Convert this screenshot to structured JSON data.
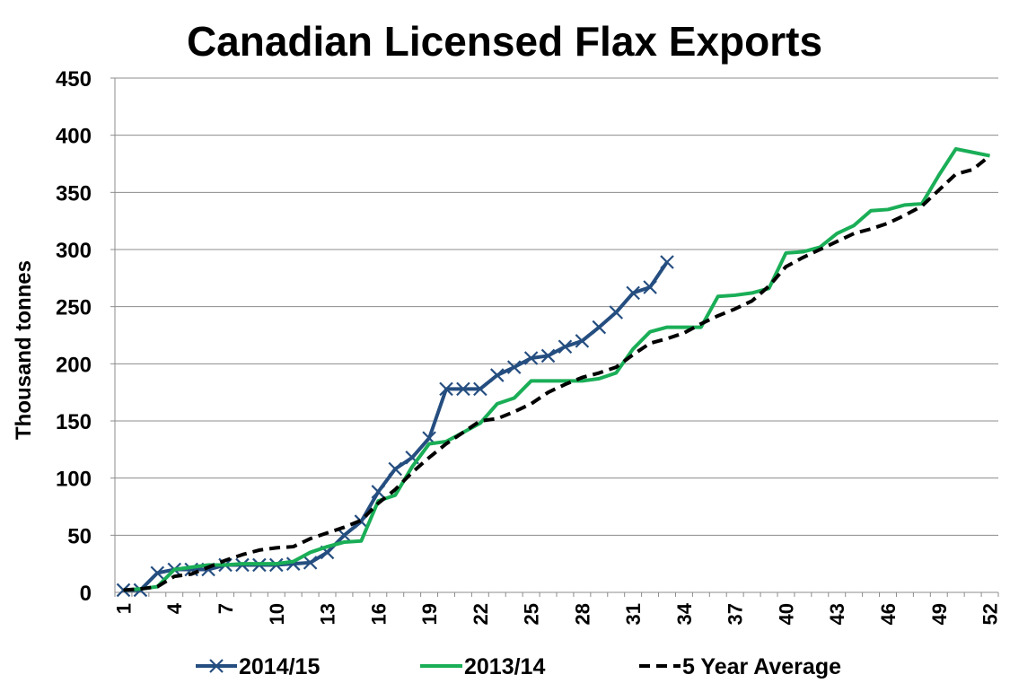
{
  "chart_data": {
    "type": "line",
    "title": "Canadian Licensed Flax Exports",
    "xlabel": "",
    "ylabel": "Thousand tonnes",
    "xlim": [
      1,
      52
    ],
    "ylim": [
      0,
      450
    ],
    "y_ticks": [
      "0",
      "50",
      "100",
      "150",
      "200",
      "250",
      "300",
      "350",
      "400",
      "450"
    ],
    "x_ticks": [
      "1",
      "4",
      "7",
      "10",
      "13",
      "16",
      "19",
      "22",
      "25",
      "28",
      "31",
      "34",
      "37",
      "40",
      "43",
      "46",
      "49",
      "52"
    ],
    "grid": "horizontal",
    "legend_position": "bottom",
    "series": [
      {
        "name": "2014/15",
        "color": "#254E80",
        "style": "solid-x-markers",
        "x": [
          1,
          2,
          3,
          4,
          5,
          6,
          7,
          8,
          9,
          10,
          11,
          12,
          13,
          14,
          15,
          16,
          17,
          18,
          19,
          20,
          21,
          22,
          23,
          24,
          25,
          26,
          27,
          28,
          29,
          30,
          31,
          32,
          33
        ],
        "values": [
          2,
          2,
          17,
          20,
          20,
          20,
          24,
          24,
          24,
          24,
          25,
          26,
          35,
          50,
          62,
          88,
          108,
          118,
          135,
          178,
          178,
          178,
          190,
          197,
          205,
          207,
          215,
          220,
          232,
          245,
          262,
          267,
          289
        ]
      },
      {
        "name": "2013/14",
        "color": "#1AAE57",
        "style": "solid",
        "x": [
          1,
          2,
          3,
          4,
          5,
          6,
          7,
          8,
          9,
          10,
          11,
          12,
          13,
          14,
          15,
          16,
          17,
          18,
          19,
          20,
          21,
          22,
          23,
          24,
          25,
          26,
          27,
          28,
          29,
          30,
          31,
          32,
          33,
          34,
          35,
          36,
          37,
          38,
          39,
          40,
          41,
          42,
          43,
          44,
          45,
          46,
          47,
          48,
          49,
          50,
          51,
          52
        ],
        "values": [
          2,
          3,
          5,
          20,
          22,
          24,
          24,
          25,
          25,
          25,
          27,
          35,
          40,
          44,
          45,
          80,
          85,
          110,
          130,
          132,
          140,
          148,
          165,
          170,
          185,
          185,
          185,
          185,
          187,
          192,
          213,
          228,
          232,
          232,
          232,
          259,
          260,
          262,
          266,
          297,
          298,
          302,
          314,
          321,
          334,
          335,
          339,
          340,
          365,
          388,
          385,
          382
        ]
      },
      {
        "name": "5 Year Average",
        "color": "#000000",
        "style": "dashed",
        "x": [
          1,
          2,
          3,
          4,
          5,
          6,
          7,
          8,
          9,
          10,
          11,
          12,
          13,
          14,
          15,
          16,
          17,
          18,
          19,
          20,
          21,
          22,
          23,
          24,
          25,
          26,
          27,
          28,
          29,
          30,
          31,
          32,
          33,
          34,
          35,
          36,
          37,
          38,
          39,
          40,
          41,
          42,
          43,
          44,
          45,
          46,
          47,
          48,
          49,
          50,
          51,
          52
        ],
        "values": [
          2,
          3,
          5,
          14,
          16,
          22,
          28,
          33,
          37,
          39,
          40,
          47,
          52,
          57,
          63,
          78,
          90,
          105,
          118,
          130,
          140,
          150,
          152,
          158,
          165,
          175,
          182,
          188,
          192,
          197,
          208,
          218,
          222,
          227,
          235,
          242,
          248,
          255,
          268,
          285,
          293,
          300,
          307,
          314,
          318,
          323,
          330,
          338,
          352,
          366,
          370,
          382
        ]
      }
    ]
  }
}
